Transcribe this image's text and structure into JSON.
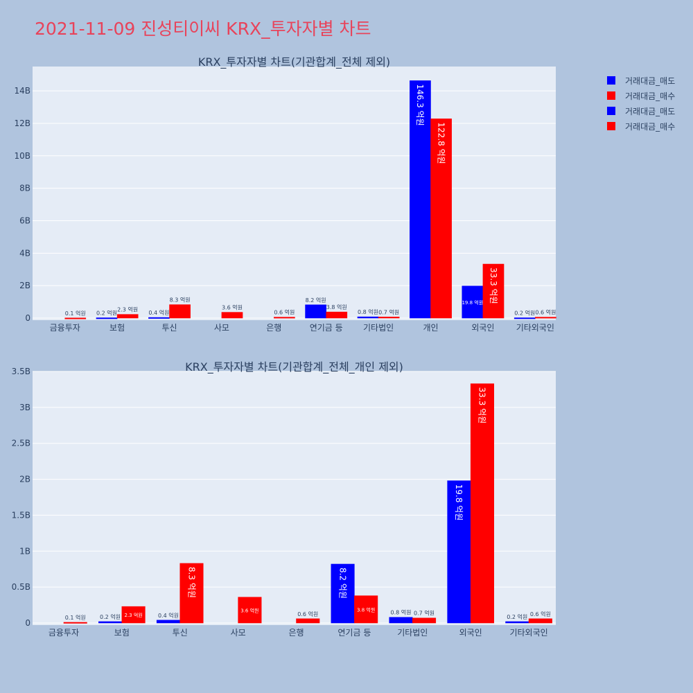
{
  "title": "2021-11-09 진성티이씨 KRX_투자자별 차트",
  "colors": {
    "sell": "#0000ff",
    "buy": "#ff0000",
    "plot_bg": "#e5ecf6",
    "page_bg": "#b0c4de",
    "title": "#e8435a"
  },
  "legend": [
    {
      "label": "거래대금_매도",
      "color": "#0000ff"
    },
    {
      "label": "거래대금_매수",
      "color": "#ff0000"
    },
    {
      "label": "거래대금_매도",
      "color": "#0000ff"
    },
    {
      "label": "거래대금_매수",
      "color": "#ff0000"
    }
  ],
  "chart_data": [
    {
      "type": "bar",
      "title": "KRX_투자자별 차트(기관합계_전체 제외)",
      "categories": [
        "금융투자",
        "보험",
        "투신",
        "사모",
        "은행",
        "연기금 등",
        "기타법인",
        "개인",
        "외국인",
        "기타외국인"
      ],
      "series": [
        {
          "name": "거래대금_매도",
          "values": [
            0,
            0.02,
            0.04,
            0,
            0,
            0.82,
            0.08,
            14.63,
            1.98,
            0.02
          ],
          "labels": [
            "",
            "0.2 억원",
            "0.4 억원",
            "",
            "",
            "8.2 억원",
            "0.8 억원",
            "146.3 억원",
            "19.8 억원",
            "0.2 억원"
          ]
        },
        {
          "name": "거래대금_매수",
          "values": [
            0.01,
            0.23,
            0.83,
            0.36,
            0.06,
            0.38,
            0.07,
            12.28,
            3.33,
            0.06
          ],
          "labels": [
            "0.1 억원",
            "2.3 억원",
            "8.3 억원",
            "3.6 억원",
            "0.6 억원",
            "3.8 억원",
            "0.7 억원",
            "122.8 억원",
            "33.3 억원",
            "0.6 억원"
          ]
        }
      ],
      "yticks": [
        "0",
        "2B",
        "4B",
        "6B",
        "8B",
        "10B",
        "12B",
        "14B"
      ],
      "ylim": [
        0,
        15.5
      ]
    },
    {
      "type": "bar",
      "title": "KRX_투자자별 차트(기관합계_전체_개인 제외)",
      "categories": [
        "금융투자",
        "보험",
        "투신",
        "사모",
        "은행",
        "연기금 등",
        "기타법인",
        "외국인",
        "기타외국인"
      ],
      "series": [
        {
          "name": "거래대금_매도",
          "values": [
            0,
            0.02,
            0.04,
            0,
            0,
            0.82,
            0.08,
            1.98,
            0.02
          ],
          "labels": [
            "",
            "0.2 억원",
            "0.4 억원",
            "",
            "",
            "8.2 억원",
            "0.8 억원",
            "19.8 억원",
            "0.2 억원"
          ]
        },
        {
          "name": "거래대금_매수",
          "values": [
            0.01,
            0.23,
            0.83,
            0.36,
            0.06,
            0.38,
            0.07,
            3.33,
            0.06
          ],
          "labels": [
            "0.1 억원",
            "2.3 억원",
            "8.3 억원",
            "3.6 억원",
            "0.6 억원",
            "3.8 억원",
            "0.7 억원",
            "33.3 억원",
            "0.6 억원"
          ]
        }
      ],
      "yticks": [
        "0",
        "0.5B",
        "1B",
        "1.5B",
        "2B",
        "2.5B",
        "3B",
        "3.5B"
      ],
      "ylim": [
        0,
        3.5
      ]
    }
  ]
}
